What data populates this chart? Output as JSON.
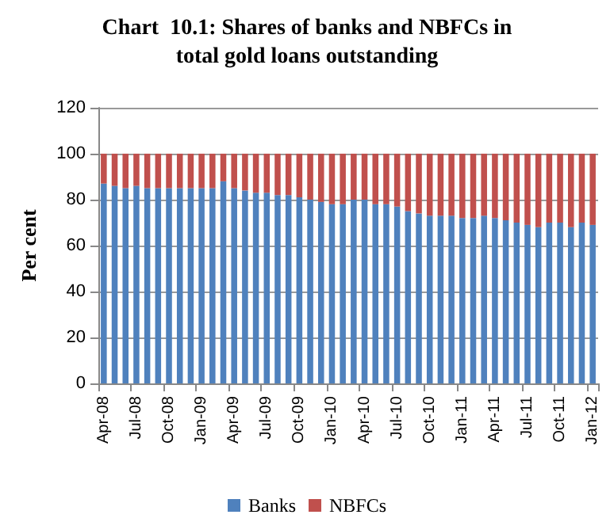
{
  "chart_data": {
    "type": "bar",
    "title": "Chart  10.1: Shares of banks and NBFCs in\ntotal gold loans outstanding",
    "ylabel": "Per cent",
    "categories": [
      "Apr-08",
      null,
      null,
      "Jul-08",
      null,
      null,
      "Oct-08",
      null,
      null,
      "Jan-09",
      null,
      null,
      "Apr-09",
      null,
      null,
      "Jul-09",
      null,
      null,
      "Oct-09",
      null,
      null,
      "Jan-10",
      null,
      null,
      "Apr-10",
      null,
      null,
      "Jul-10",
      null,
      null,
      "Oct-10",
      null,
      null,
      "Jan-11",
      null,
      null,
      "Apr-11",
      null,
      null,
      "Jul-11",
      null,
      null,
      "Oct-11",
      null,
      null,
      "Jan-12"
    ],
    "stacked": true,
    "series": [
      {
        "name": "Banks",
        "color": "#4f81bd",
        "values": [
          87,
          86,
          85,
          86,
          85,
          85,
          85,
          85,
          85,
          85,
          85,
          88,
          85,
          84,
          83,
          83,
          82,
          82,
          81,
          80,
          79,
          78,
          78,
          80,
          80,
          78,
          78,
          77,
          75,
          74,
          73,
          73,
          73,
          72,
          72,
          73,
          72,
          71,
          70,
          69,
          68,
          70,
          70,
          68,
          70,
          69
        ]
      },
      {
        "name": "NBFCs",
        "color": "#c0504d",
        "values": [
          13,
          14,
          15,
          14,
          15,
          15,
          15,
          15,
          15,
          15,
          15,
          12,
          15,
          16,
          17,
          17,
          18,
          18,
          19,
          20,
          21,
          22,
          22,
          20,
          20,
          22,
          22,
          23,
          25,
          26,
          27,
          27,
          27,
          28,
          28,
          27,
          28,
          29,
          30,
          31,
          32,
          30,
          30,
          32,
          30,
          31
        ]
      }
    ],
    "ylim": [
      0,
      120
    ],
    "yticks": [
      0,
      20,
      40,
      60,
      80,
      100,
      120
    ],
    "grid": "y",
    "legend": "bottom"
  }
}
